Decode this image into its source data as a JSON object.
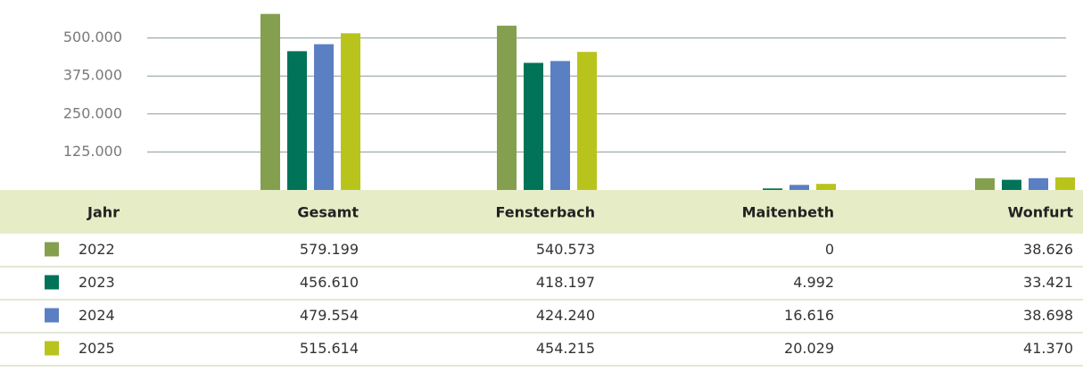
{
  "chart_data": {
    "type": "bar",
    "row_header": "Jahr",
    "categories": [
      "Gesamt",
      "Fensterbach",
      "Maitenbeth",
      "Wonfurt"
    ],
    "series": [
      {
        "name": "2022",
        "color": "#84a04e",
        "values": [
          579199,
          540573,
          0,
          38626
        ],
        "value_labels": [
          "579.199",
          "540.573",
          "0",
          "38.626"
        ]
      },
      {
        "name": "2023",
        "color": "#007358",
        "values": [
          456610,
          418197,
          4992,
          33421
        ],
        "value_labels": [
          "456.610",
          "418.197",
          "4.992",
          "33.421"
        ]
      },
      {
        "name": "2024",
        "color": "#5a7fc3",
        "values": [
          479554,
          424240,
          16616,
          38698
        ],
        "value_labels": [
          "479.554",
          "424.240",
          "16.616",
          "38.698"
        ]
      },
      {
        "name": "2025",
        "color": "#b8c41c",
        "values": [
          515614,
          454215,
          20029,
          41370
        ],
        "value_labels": [
          "515.614",
          "454.215",
          "20.029",
          "41.370"
        ]
      }
    ],
    "ylim": [
      0,
      625000
    ],
    "yticks": [
      {
        "value": 125000,
        "label": "125.000"
      },
      {
        "value": 250000,
        "label": "250.000"
      },
      {
        "value": 375000,
        "label": "375.000"
      },
      {
        "value": 500000,
        "label": "500.000"
      }
    ],
    "grid": true
  }
}
